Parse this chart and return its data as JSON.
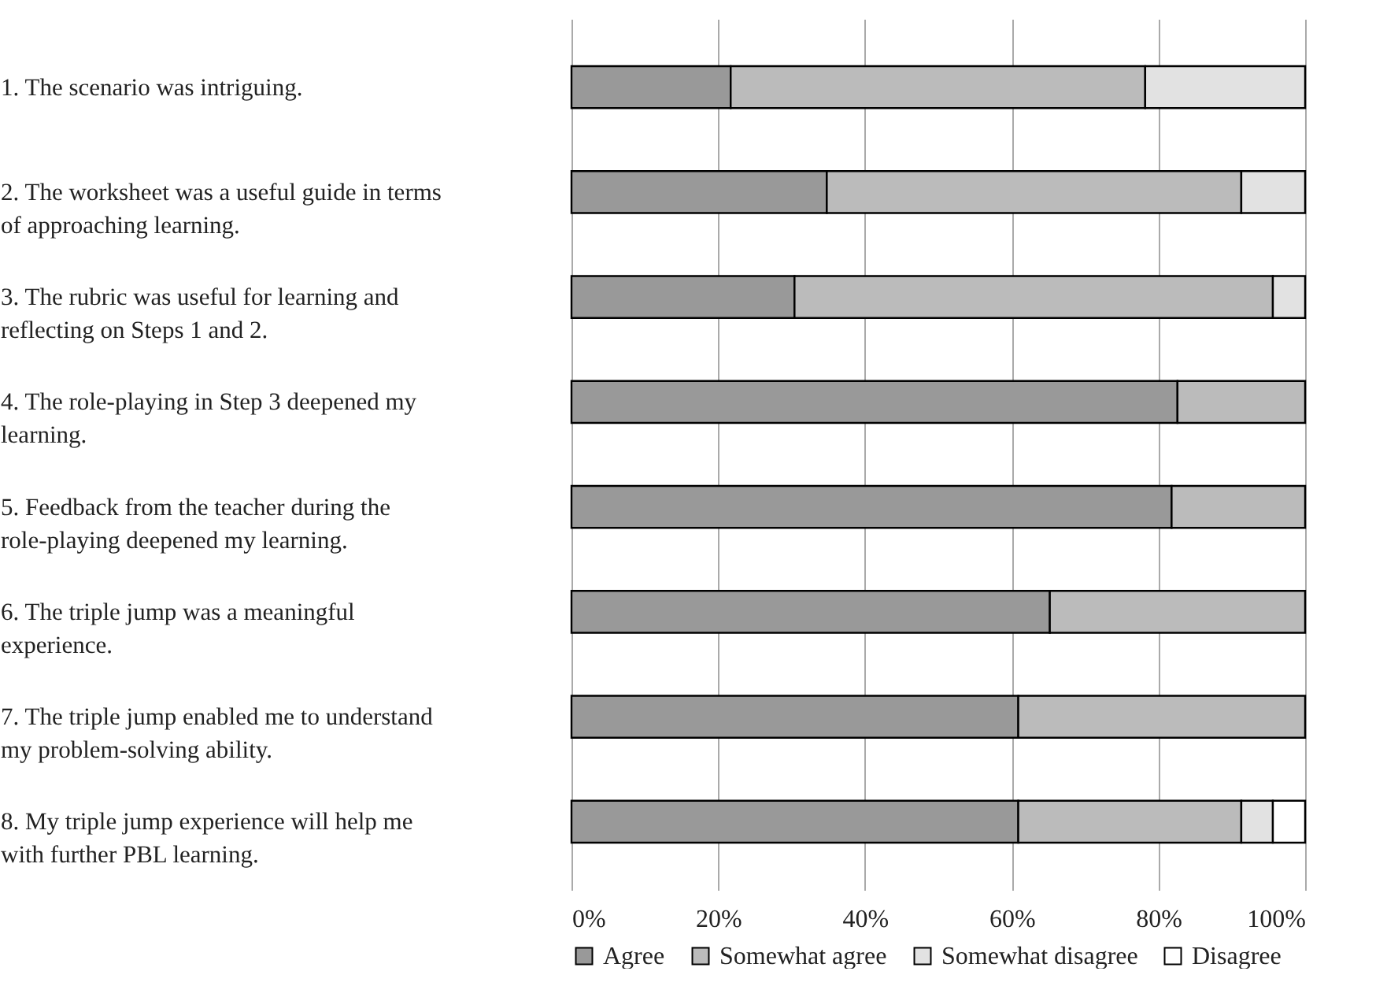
{
  "chart_data": {
    "type": "bar",
    "orientation": "horizontal",
    "stacked": true,
    "categories": [
      "1. The scenario was intriguing.",
      "2. The worksheet was a useful guide in terms of approaching learning.",
      "3. The rubric was useful for learning and reflecting on Steps 1 and 2.",
      "4. The role-playing in Step 3 deepened my learning.",
      "5. Feedback from the teacher during the role-playing deepened my learning.",
      "6. The triple jump was a meaningful experience.",
      "7. The triple jump enabled me to understand my problem-solving ability.",
      "8. My triple jump experience will help me with further PBL learning."
    ],
    "series": [
      {
        "name": "Agree",
        "color": "#999999",
        "values": [
          21.7,
          34.8,
          30.4,
          82.6,
          81.8,
          65.2,
          60.9,
          60.9
        ]
      },
      {
        "name": "Somewhat agree",
        "color": "#bbbbbb",
        "values": [
          56.5,
          56.5,
          65.2,
          17.4,
          18.2,
          34.8,
          39.1,
          30.4
        ]
      },
      {
        "name": "Somewhat disagree",
        "color": "#e2e2e2",
        "values": [
          21.8,
          8.7,
          4.4,
          null,
          null,
          null,
          null,
          4.3
        ]
      },
      {
        "name": "Disagree",
        "color": "#ffffff",
        "values": [
          null,
          null,
          null,
          null,
          null,
          null,
          null,
          4.4
        ]
      }
    ],
    "xlim": [
      0,
      100
    ],
    "xticks": [
      {
        "value": 0,
        "label": "0%"
      },
      {
        "value": 20,
        "label": "20%"
      },
      {
        "value": 40,
        "label": "40%"
      },
      {
        "value": 60,
        "label": "60%"
      },
      {
        "value": 80,
        "label": "80%"
      },
      {
        "value": 100,
        "label": "100%"
      }
    ],
    "grid": "x",
    "legend": "bottom"
  }
}
